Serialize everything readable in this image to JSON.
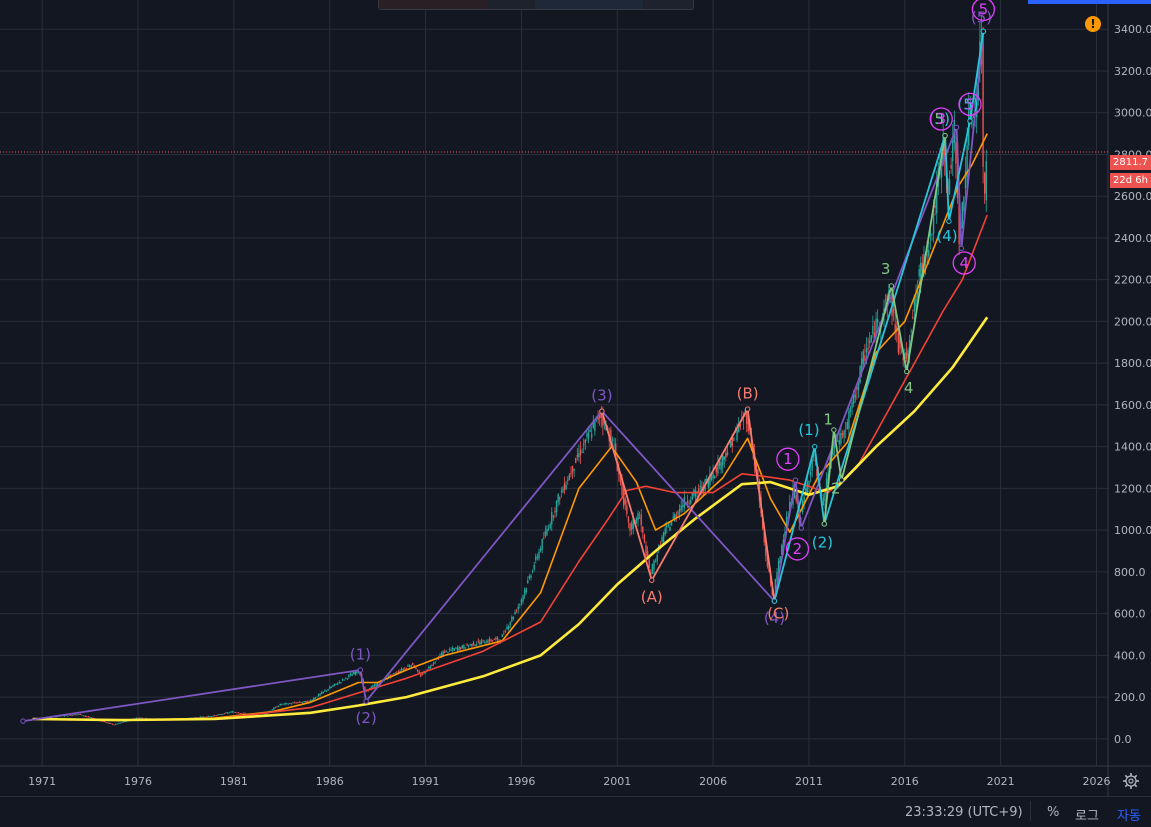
{
  "toolbar": {
    "status": {
      "clock": "23:33:29 (UTC+9)",
      "percent_label": "%",
      "log_label": "로그",
      "auto_label": "자동"
    },
    "warning_icon": "exclamation-icon",
    "settings_icon": "gear-icon"
  },
  "colors": {
    "background": "#131722",
    "grid": "#2a2e39",
    "up_candle": "#26a69a",
    "down_candle": "#ef5350",
    "ma_orange": "#ff9800",
    "ma_red": "#f44336",
    "ma_yellow": "#ffeb3b",
    "wave_purple": "#7e57c2",
    "wave_cyan": "#26c6da",
    "wave_magenta": "#e040fb",
    "wave_salmon": "#f77c70",
    "wave_green": "#81c784"
  },
  "chart_data": {
    "type": "line",
    "series_style": "candlestick with moving averages and Elliott wave annotations",
    "ylim": [
      -130,
      3540
    ],
    "xlim": [
      1968.8,
      2026.6
    ],
    "yticks": [
      0,
      200,
      400,
      600,
      800,
      1000,
      1200,
      1400,
      1600,
      1800,
      2000,
      2200,
      2400,
      2600,
      2800,
      3000,
      3200,
      3400
    ],
    "ytick_labels": [
      "0.0",
      "200.0",
      "400.0",
      "600.0",
      "800.0",
      "1000.0",
      "1200.0",
      "1400.0",
      "1600.0",
      "1800.0",
      "2000.0",
      "2200.0",
      "2400.0",
      "2600.0",
      "2800.0",
      "3000.0",
      "3200.0",
      "3400.0"
    ],
    "xticks": [
      1971,
      1976,
      1981,
      1986,
      1991,
      1996,
      2001,
      2006,
      2011,
      2016,
      2021,
      2026
    ],
    "xtick_labels": [
      "1971",
      "1976",
      "1981",
      "1986",
      "1991",
      "1996",
      "2001",
      "2006",
      "2011",
      "2016",
      "2021",
      "2026"
    ],
    "current_price": 2811.7,
    "current_price_label": "2811.7",
    "countdown_label": "22d 6h",
    "price_path": [
      [
        1970.0,
        85
      ],
      [
        1972.0,
        110
      ],
      [
        1973.0,
        118
      ],
      [
        1974.0,
        90
      ],
      [
        1974.8,
        68
      ],
      [
        1976.0,
        100
      ],
      [
        1978.0,
        92
      ],
      [
        1980.0,
        110
      ],
      [
        1981.0,
        130
      ],
      [
        1982.5,
        110
      ],
      [
        1983.5,
        165
      ],
      [
        1985.0,
        180
      ],
      [
        1986.0,
        240
      ],
      [
        1987.6,
        330
      ],
      [
        1987.9,
        225
      ],
      [
        1989.0,
        290
      ],
      [
        1990.4,
        360
      ],
      [
        1990.8,
        300
      ],
      [
        1992.0,
        415
      ],
      [
        1994.0,
        465
      ],
      [
        1995.0,
        480
      ],
      [
        1996.0,
        650
      ],
      [
        1997.0,
        900
      ],
      [
        1998.0,
        1150
      ],
      [
        1999.0,
        1350
      ],
      [
        2000.2,
        1560
      ],
      [
        2000.9,
        1400
      ],
      [
        2001.7,
        1000
      ],
      [
        2002.2,
        1080
      ],
      [
        2002.8,
        790
      ],
      [
        2003.5,
        980
      ],
      [
        2004.5,
        1130
      ],
      [
        2005.5,
        1200
      ],
      [
        2006.5,
        1330
      ],
      [
        2007.8,
        1560
      ],
      [
        2008.3,
        1300
      ],
      [
        2008.8,
        900
      ],
      [
        2009.2,
        680
      ],
      [
        2009.8,
        1000
      ],
      [
        2010.3,
        1200
      ],
      [
        2010.6,
        1050
      ],
      [
        2011.3,
        1360
      ],
      [
        2011.8,
        1120
      ],
      [
        2012.3,
        1400
      ],
      [
        2013.0,
        1480
      ],
      [
        2014.0,
        1850
      ],
      [
        2015.3,
        2130
      ],
      [
        2015.7,
        1900
      ],
      [
        2016.1,
        1810
      ],
      [
        2016.8,
        2200
      ],
      [
        2017.5,
        2450
      ],
      [
        2018.1,
        2870
      ],
      [
        2018.3,
        2600
      ],
      [
        2018.7,
        2930
      ],
      [
        2018.95,
        2350
      ],
      [
        2019.4,
        2950
      ],
      [
        2019.8,
        3050
      ],
      [
        2020.1,
        3390
      ],
      [
        2020.2,
        2400
      ],
      [
        2020.3,
        2811.7
      ]
    ],
    "series": [
      {
        "values": [
          [
            1970.5,
            95
          ],
          [
            1975,
            88
          ],
          [
            1980,
            100
          ],
          [
            1983,
            130
          ],
          [
            1985,
            175
          ],
          [
            1987.5,
            270
          ],
          [
            1988.5,
            270
          ],
          [
            1990,
            330
          ],
          [
            1992,
            400
          ],
          [
            1995,
            470
          ],
          [
            1997,
            700
          ],
          [
            1999,
            1200
          ],
          [
            2000.7,
            1400
          ],
          [
            2002,
            1230
          ],
          [
            2003,
            1000
          ],
          [
            2004.5,
            1080
          ],
          [
            2006.5,
            1250
          ],
          [
            2007.8,
            1440
          ],
          [
            2009,
            1150
          ],
          [
            2010,
            990
          ],
          [
            2011.5,
            1260
          ],
          [
            2013,
            1420
          ],
          [
            2014.5,
            1850
          ],
          [
            2016,
            2000
          ],
          [
            2017.5,
            2350
          ],
          [
            2018.8,
            2650
          ],
          [
            2019.5,
            2750
          ],
          [
            2020.3,
            2900
          ]
        ]
      },
      {
        "values": [
          [
            1970.5,
            95
          ],
          [
            1975,
            92
          ],
          [
            1980,
            95
          ],
          [
            1985,
            150
          ],
          [
            1987.5,
            220
          ],
          [
            1990,
            290
          ],
          [
            1994,
            420
          ],
          [
            1997,
            560
          ],
          [
            1999,
            850
          ],
          [
            2000.5,
            1050
          ],
          [
            2001.5,
            1190
          ],
          [
            2002.5,
            1210
          ],
          [
            2004,
            1180
          ],
          [
            2006,
            1180
          ],
          [
            2007.5,
            1270
          ],
          [
            2008.5,
            1260
          ],
          [
            2010,
            1240
          ],
          [
            2012,
            1180
          ],
          [
            2013.5,
            1300
          ],
          [
            2015,
            1550
          ],
          [
            2016.5,
            1800
          ],
          [
            2018,
            2050
          ],
          [
            2019,
            2200
          ],
          [
            2020.3,
            2510
          ]
        ]
      },
      {
        "values": [
          [
            1970.5,
            95
          ],
          [
            1975,
            90
          ],
          [
            1980,
            95
          ],
          [
            1985,
            125
          ],
          [
            1987.5,
            160
          ],
          [
            1990,
            200
          ],
          [
            1994,
            300
          ],
          [
            1997,
            400
          ],
          [
            1999,
            550
          ],
          [
            2001,
            740
          ],
          [
            2003,
            900
          ],
          [
            2005,
            1050
          ],
          [
            2007.5,
            1220
          ],
          [
            2009,
            1230
          ],
          [
            2011,
            1170
          ],
          [
            2012.5,
            1210
          ],
          [
            2014.5,
            1400
          ],
          [
            2016.5,
            1570
          ],
          [
            2018.5,
            1780
          ],
          [
            2020.3,
            2020
          ]
        ]
      }
    ],
    "wave_polylines": [
      {
        "color": "wave_purple",
        "points": [
          [
            1970,
            85
          ],
          [
            1987.6,
            330
          ],
          [
            1987.9,
            180
          ],
          [
            2000.2,
            1570
          ],
          [
            2009.2,
            660
          ],
          [
            2010.3,
            1240
          ],
          [
            2010.6,
            1010
          ],
          [
            2018.7,
            2930
          ],
          [
            2018.95,
            2350
          ],
          [
            2020.1,
            3390
          ]
        ]
      },
      {
        "color": "wave_salmon",
        "points": [
          [
            2000.2,
            1570
          ],
          [
            2002.8,
            760
          ],
          [
            2007.8,
            1580
          ],
          [
            2009.2,
            660
          ]
        ]
      },
      {
        "color": "wave_cyan",
        "points": [
          [
            2009.2,
            660
          ],
          [
            2011.3,
            1400
          ],
          [
            2011.8,
            1030
          ],
          [
            2018.1,
            2890
          ],
          [
            2018.3,
            2480
          ],
          [
            2019.4,
            2960
          ],
          [
            2020.1,
            3390
          ]
        ]
      },
      {
        "color": "wave_green",
        "points": [
          [
            2011.8,
            1030
          ],
          [
            2012.3,
            1480
          ],
          [
            2012.7,
            1240
          ],
          [
            2015.3,
            2170
          ],
          [
            2016.1,
            1760
          ],
          [
            2018.1,
            2890
          ]
        ]
      }
    ],
    "wave_labels": [
      {
        "text": "(1)",
        "x": 1987.6,
        "y": 405,
        "color": "wave_purple"
      },
      {
        "text": "(2)",
        "x": 1987.9,
        "y": 100,
        "color": "wave_purple"
      },
      {
        "text": "(3)",
        "x": 2000.2,
        "y": 1645,
        "color": "wave_purple"
      },
      {
        "text": "(4)",
        "x": 2009.2,
        "y": 580,
        "color": "wave_purple"
      },
      {
        "text": "(5)",
        "x": 2020.0,
        "y": 3455,
        "color": "wave_purple"
      },
      {
        "text": "(A)",
        "x": 2002.8,
        "y": 680,
        "color": "wave_salmon"
      },
      {
        "text": "(B)",
        "x": 2007.8,
        "y": 1655,
        "color": "wave_salmon"
      },
      {
        "text": "(C)",
        "x": 2009.4,
        "y": 600,
        "color": "wave_salmon"
      },
      {
        "text": "(1)",
        "x": 2011.0,
        "y": 1480,
        "color": "wave_cyan"
      },
      {
        "text": "(2)",
        "x": 2011.7,
        "y": 940,
        "color": "wave_cyan"
      },
      {
        "text": "(3)",
        "x": 2017.8,
        "y": 2970,
        "color": "wave_cyan"
      },
      {
        "text": "(4)",
        "x": 2018.2,
        "y": 2410,
        "color": "wave_cyan"
      },
      {
        "text": "(5)",
        "x": 2019.3,
        "y": 3040,
        "color": "wave_cyan"
      },
      {
        "text": "1",
        "x": 2012.0,
        "y": 1530,
        "color": "wave_green"
      },
      {
        "text": "2",
        "x": 2012.4,
        "y": 1200,
        "color": "wave_green"
      },
      {
        "text": "3",
        "x": 2015.0,
        "y": 2250,
        "color": "wave_green"
      },
      {
        "text": "4",
        "x": 2016.2,
        "y": 1680,
        "color": "wave_green"
      },
      {
        "text": "5",
        "x": 2017.8,
        "y": 2970,
        "color": "wave_green"
      }
    ],
    "circle_labels": [
      {
        "text": "1",
        "x": 2009.9,
        "y": 1340,
        "color": "wave_magenta"
      },
      {
        "text": "2",
        "x": 2010.4,
        "y": 910,
        "color": "wave_magenta"
      },
      {
        "text": "3",
        "x": 2017.9,
        "y": 2970,
        "color": "wave_magenta"
      },
      {
        "text": "4",
        "x": 2019.1,
        "y": 2280,
        "color": "wave_magenta"
      },
      {
        "text": "5",
        "x": 2019.4,
        "y": 3040,
        "color": "wave_magenta"
      },
      {
        "text": "5",
        "x": 2020.1,
        "y": 3495,
        "color": "wave_magenta"
      }
    ]
  }
}
